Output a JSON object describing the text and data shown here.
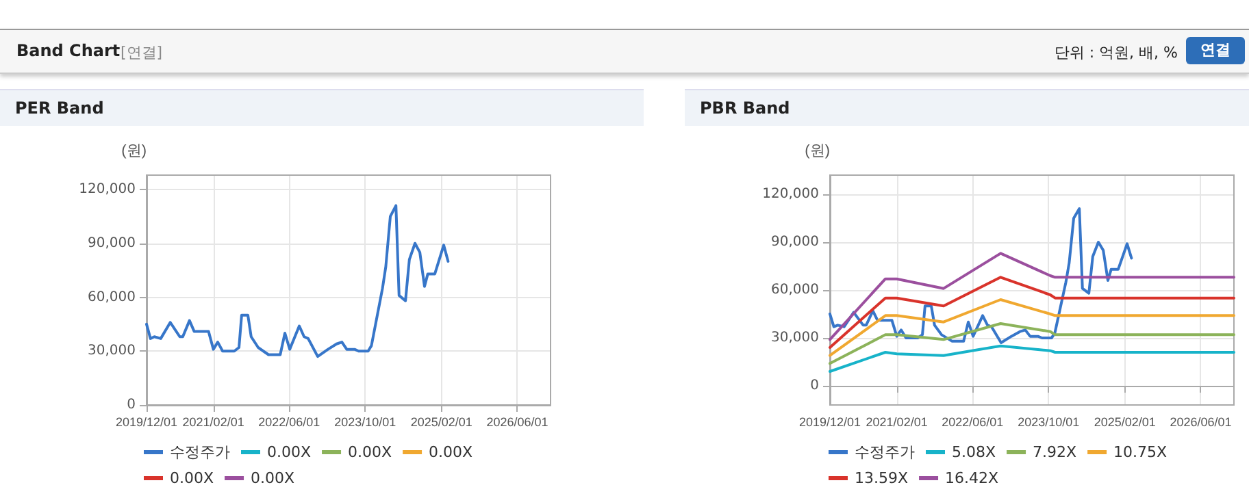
{
  "chart_data": [
    {
      "type": "line",
      "title": "PER Band",
      "ylabel": "(원)",
      "annotations": [
        "Band Chart",
        "[연결]",
        "단위 : 억원, 배, %",
        "연결"
      ],
      "xlim": [
        "2019-12-01",
        "2026-12-31"
      ],
      "xticks": [
        {
          "value": "2019-12-01",
          "label": "2019/12/01"
        },
        {
          "value": "2021-02-01",
          "label": "2021/02/01"
        },
        {
          "value": "2022-06-01",
          "label": "2022/06/01"
        },
        {
          "value": "2023-10-01",
          "label": "2023/10/01"
        },
        {
          "value": "2025-02-01",
          "label": "2025/02/01"
        },
        {
          "value": "2026-06-01",
          "label": "2026/06/01"
        }
      ],
      "ylim": [
        0,
        128000
      ],
      "yticks": [
        {
          "value": 0,
          "label": "0"
        },
        {
          "value": 30000,
          "label": "30,000"
        },
        {
          "value": 60000,
          "label": "60,000"
        },
        {
          "value": 90000,
          "label": "90,000"
        },
        {
          "value": 120000,
          "label": "120,000"
        }
      ],
      "grid": true,
      "legend": "bottom",
      "marker": "none",
      "x": [
        "2019-12-01",
        "2019-12-26",
        "2020-01-20",
        "2020-03-01",
        "2020-05-01",
        "2020-07-01",
        "2020-07-20",
        "2020-09-01",
        "2020-10-01",
        "2021-01-01",
        "2021-02-01",
        "2021-03-01",
        "2021-04-01",
        "2021-06-15",
        "2021-07-15",
        "2021-08-01",
        "2021-09-10",
        "2021-10-01",
        "2021-11-15",
        "2022-01-20",
        "2022-04-05",
        "2022-05-05",
        "2022-06-05",
        "2022-08-05",
        "2022-09-05",
        "2022-10-01",
        "2022-12-01",
        "2023-02-05",
        "2023-04-01",
        "2023-05-05",
        "2023-06-05",
        "2023-07-25",
        "2023-08-20",
        "2023-10-20",
        "2023-11-10",
        "2024-01-20",
        "2024-02-10",
        "2024-03-10",
        "2024-04-15",
        "2024-05-05",
        "2024-06-15",
        "2024-07-10",
        "2024-08-15",
        "2024-09-15",
        "2024-10-15",
        "2024-11-05",
        "2024-12-20",
        "2025-02-15",
        "2025-03-15"
      ],
      "series": [
        {
          "name": "수정주가",
          "color": "#3776c9",
          "values": [
            45000,
            37000,
            38000,
            37000,
            46000,
            38000,
            38000,
            47000,
            41000,
            41000,
            31000,
            35000,
            30000,
            30000,
            32000,
            50000,
            50000,
            38000,
            32000,
            28000,
            28000,
            40000,
            31000,
            44000,
            38000,
            37000,
            27000,
            31000,
            34000,
            35000,
            31000,
            31000,
            30000,
            30000,
            33000,
            65000,
            77000,
            105000,
            111000,
            61000,
            58000,
            81000,
            90000,
            85000,
            66000,
            73000,
            73000,
            89000,
            80000
          ]
        },
        {
          "name": "0.00X",
          "color": "#17b3c9",
          "values": [
            null,
            null,
            null,
            null,
            null,
            null,
            null,
            null,
            null,
            null,
            null,
            null,
            null,
            null,
            null,
            null,
            null,
            null,
            null,
            null,
            null,
            null,
            null,
            null,
            null,
            null,
            null,
            null,
            null,
            null,
            null,
            null,
            null,
            null,
            null,
            null,
            null,
            null,
            null,
            null,
            null,
            null,
            null,
            null,
            null,
            null,
            null,
            null,
            null
          ]
        },
        {
          "name": "0.00X",
          "color": "#8cb35a",
          "values": [
            null,
            null,
            null,
            null,
            null,
            null,
            null,
            null,
            null,
            null,
            null,
            null,
            null,
            null,
            null,
            null,
            null,
            null,
            null,
            null,
            null,
            null,
            null,
            null,
            null,
            null,
            null,
            null,
            null,
            null,
            null,
            null,
            null,
            null,
            null,
            null,
            null,
            null,
            null,
            null,
            null,
            null,
            null,
            null,
            null,
            null,
            null,
            null,
            null
          ]
        },
        {
          "name": "0.00X",
          "color": "#f0a830",
          "values": [
            null,
            null,
            null,
            null,
            null,
            null,
            null,
            null,
            null,
            null,
            null,
            null,
            null,
            null,
            null,
            null,
            null,
            null,
            null,
            null,
            null,
            null,
            null,
            null,
            null,
            null,
            null,
            null,
            null,
            null,
            null,
            null,
            null,
            null,
            null,
            null,
            null,
            null,
            null,
            null,
            null,
            null,
            null,
            null,
            null,
            null,
            null,
            null,
            null
          ]
        },
        {
          "name": "0.00X",
          "color": "#d9332b",
          "values": [
            null,
            null,
            null,
            null,
            null,
            null,
            null,
            null,
            null,
            null,
            null,
            null,
            null,
            null,
            null,
            null,
            null,
            null,
            null,
            null,
            null,
            null,
            null,
            null,
            null,
            null,
            null,
            null,
            null,
            null,
            null,
            null,
            null,
            null,
            null,
            null,
            null,
            null,
            null,
            null,
            null,
            null,
            null,
            null,
            null,
            null,
            null,
            null,
            null
          ]
        },
        {
          "name": "0.00X",
          "color": "#9b4f9e",
          "values": [
            null,
            null,
            null,
            null,
            null,
            null,
            null,
            null,
            null,
            null,
            null,
            null,
            null,
            null,
            null,
            null,
            null,
            null,
            null,
            null,
            null,
            null,
            null,
            null,
            null,
            null,
            null,
            null,
            null,
            null,
            null,
            null,
            null,
            null,
            null,
            null,
            null,
            null,
            null,
            null,
            null,
            null,
            null,
            null,
            null,
            null,
            null,
            null,
            null
          ]
        }
      ]
    },
    {
      "type": "line",
      "title": "PBR Band",
      "ylabel": "(원)",
      "xlim": [
        "2019-12-01",
        "2026-12-31"
      ],
      "xticks": [
        {
          "value": "2019-12-01",
          "label": "2019/12/01"
        },
        {
          "value": "2021-02-01",
          "label": "2021/02/01"
        },
        {
          "value": "2022-06-01",
          "label": "2022/06/01"
        },
        {
          "value": "2023-10-01",
          "label": "2023/10/01"
        },
        {
          "value": "2025-02-01",
          "label": "2025/02/01"
        },
        {
          "value": "2026-06-01",
          "label": "2026/06/01"
        }
      ],
      "ylim": [
        -12000,
        132000
      ],
      "yticks": [
        {
          "value": 0,
          "label": "0"
        },
        {
          "value": 30000,
          "label": "30,000"
        },
        {
          "value": 60000,
          "label": "60,000"
        },
        {
          "value": 90000,
          "label": "90,000"
        },
        {
          "value": 120000,
          "label": "120,000"
        }
      ],
      "grid": true,
      "legend": "bottom",
      "marker": "none",
      "x": [
        "2019-12-01",
        "2019-12-26",
        "2020-01-20",
        "2020-03-01",
        "2020-05-01",
        "2020-07-01",
        "2020-07-20",
        "2020-09-01",
        "2020-10-01",
        "2021-01-01",
        "2021-02-01",
        "2021-03-01",
        "2021-04-01",
        "2021-06-15",
        "2021-07-15",
        "2021-08-01",
        "2021-09-10",
        "2021-10-01",
        "2021-11-15",
        "2022-01-20",
        "2022-04-05",
        "2022-05-05",
        "2022-06-05",
        "2022-08-05",
        "2022-09-05",
        "2022-10-01",
        "2022-12-01",
        "2023-02-05",
        "2023-04-01",
        "2023-05-05",
        "2023-06-05",
        "2023-07-25",
        "2023-08-20",
        "2023-10-20",
        "2023-11-10",
        "2024-01-20",
        "2024-02-10",
        "2024-03-10",
        "2024-04-15",
        "2024-05-05",
        "2024-06-15",
        "2024-07-10",
        "2024-08-15",
        "2024-09-15",
        "2024-10-15",
        "2024-11-05",
        "2024-12-20",
        "2025-02-15",
        "2025-03-15"
      ],
      "series": [
        {
          "name": "수정주가",
          "color": "#3776c9",
          "values": [
            45000,
            37000,
            38000,
            37000,
            46000,
            38000,
            38000,
            47000,
            41000,
            41000,
            31000,
            35000,
            30000,
            30000,
            32000,
            50000,
            50000,
            38000,
            32000,
            28000,
            28000,
            40000,
            31000,
            44000,
            38000,
            37000,
            27000,
            31000,
            34000,
            35000,
            31000,
            31000,
            30000,
            30000,
            33000,
            65000,
            77000,
            105000,
            111000,
            61000,
            58000,
            81000,
            90000,
            85000,
            66000,
            73000,
            73000,
            89000,
            80000
          ]
        },
        {
          "name": "5.08X",
          "color": "#17b3c9",
          "x": [
            "2019-12-01",
            "2020-11-20",
            "2021-02-01",
            "2021-11-28",
            "2022-11-28",
            "2023-10-12",
            "2023-11-12",
            "2026-12-31"
          ],
          "values": [
            9000,
            21000,
            20000,
            19000,
            25000,
            22000,
            21000,
            21000
          ]
        },
        {
          "name": "7.92X",
          "color": "#8cb35a",
          "x": [
            "2019-12-01",
            "2020-11-20",
            "2021-02-01",
            "2021-11-28",
            "2022-11-28",
            "2023-10-12",
            "2023-11-12",
            "2026-12-31"
          ],
          "values": [
            14000,
            32000,
            32000,
            29000,
            39000,
            34000,
            32000,
            32000
          ]
        },
        {
          "name": "10.75X",
          "color": "#f0a830",
          "x": [
            "2019-12-01",
            "2020-11-20",
            "2021-02-01",
            "2021-11-28",
            "2022-11-28",
            "2023-10-12",
            "2023-11-12",
            "2026-12-31"
          ],
          "values": [
            19000,
            44000,
            44000,
            40000,
            54000,
            45000,
            44000,
            44000
          ]
        },
        {
          "name": "13.59X",
          "color": "#d9332b",
          "x": [
            "2019-12-01",
            "2020-11-20",
            "2021-02-01",
            "2021-11-28",
            "2022-11-28",
            "2023-10-12",
            "2023-11-12",
            "2026-12-31"
          ],
          "values": [
            24000,
            55000,
            55000,
            50000,
            68000,
            57000,
            55000,
            55000
          ]
        },
        {
          "name": "16.42X",
          "color": "#9b4f9e",
          "x": [
            "2019-12-01",
            "2020-11-20",
            "2021-02-01",
            "2021-11-28",
            "2022-11-28",
            "2023-10-12",
            "2023-11-12",
            "2026-12-31"
          ],
          "values": [
            29000,
            67000,
            67000,
            61000,
            83000,
            69000,
            68000,
            68000
          ]
        }
      ]
    }
  ]
}
